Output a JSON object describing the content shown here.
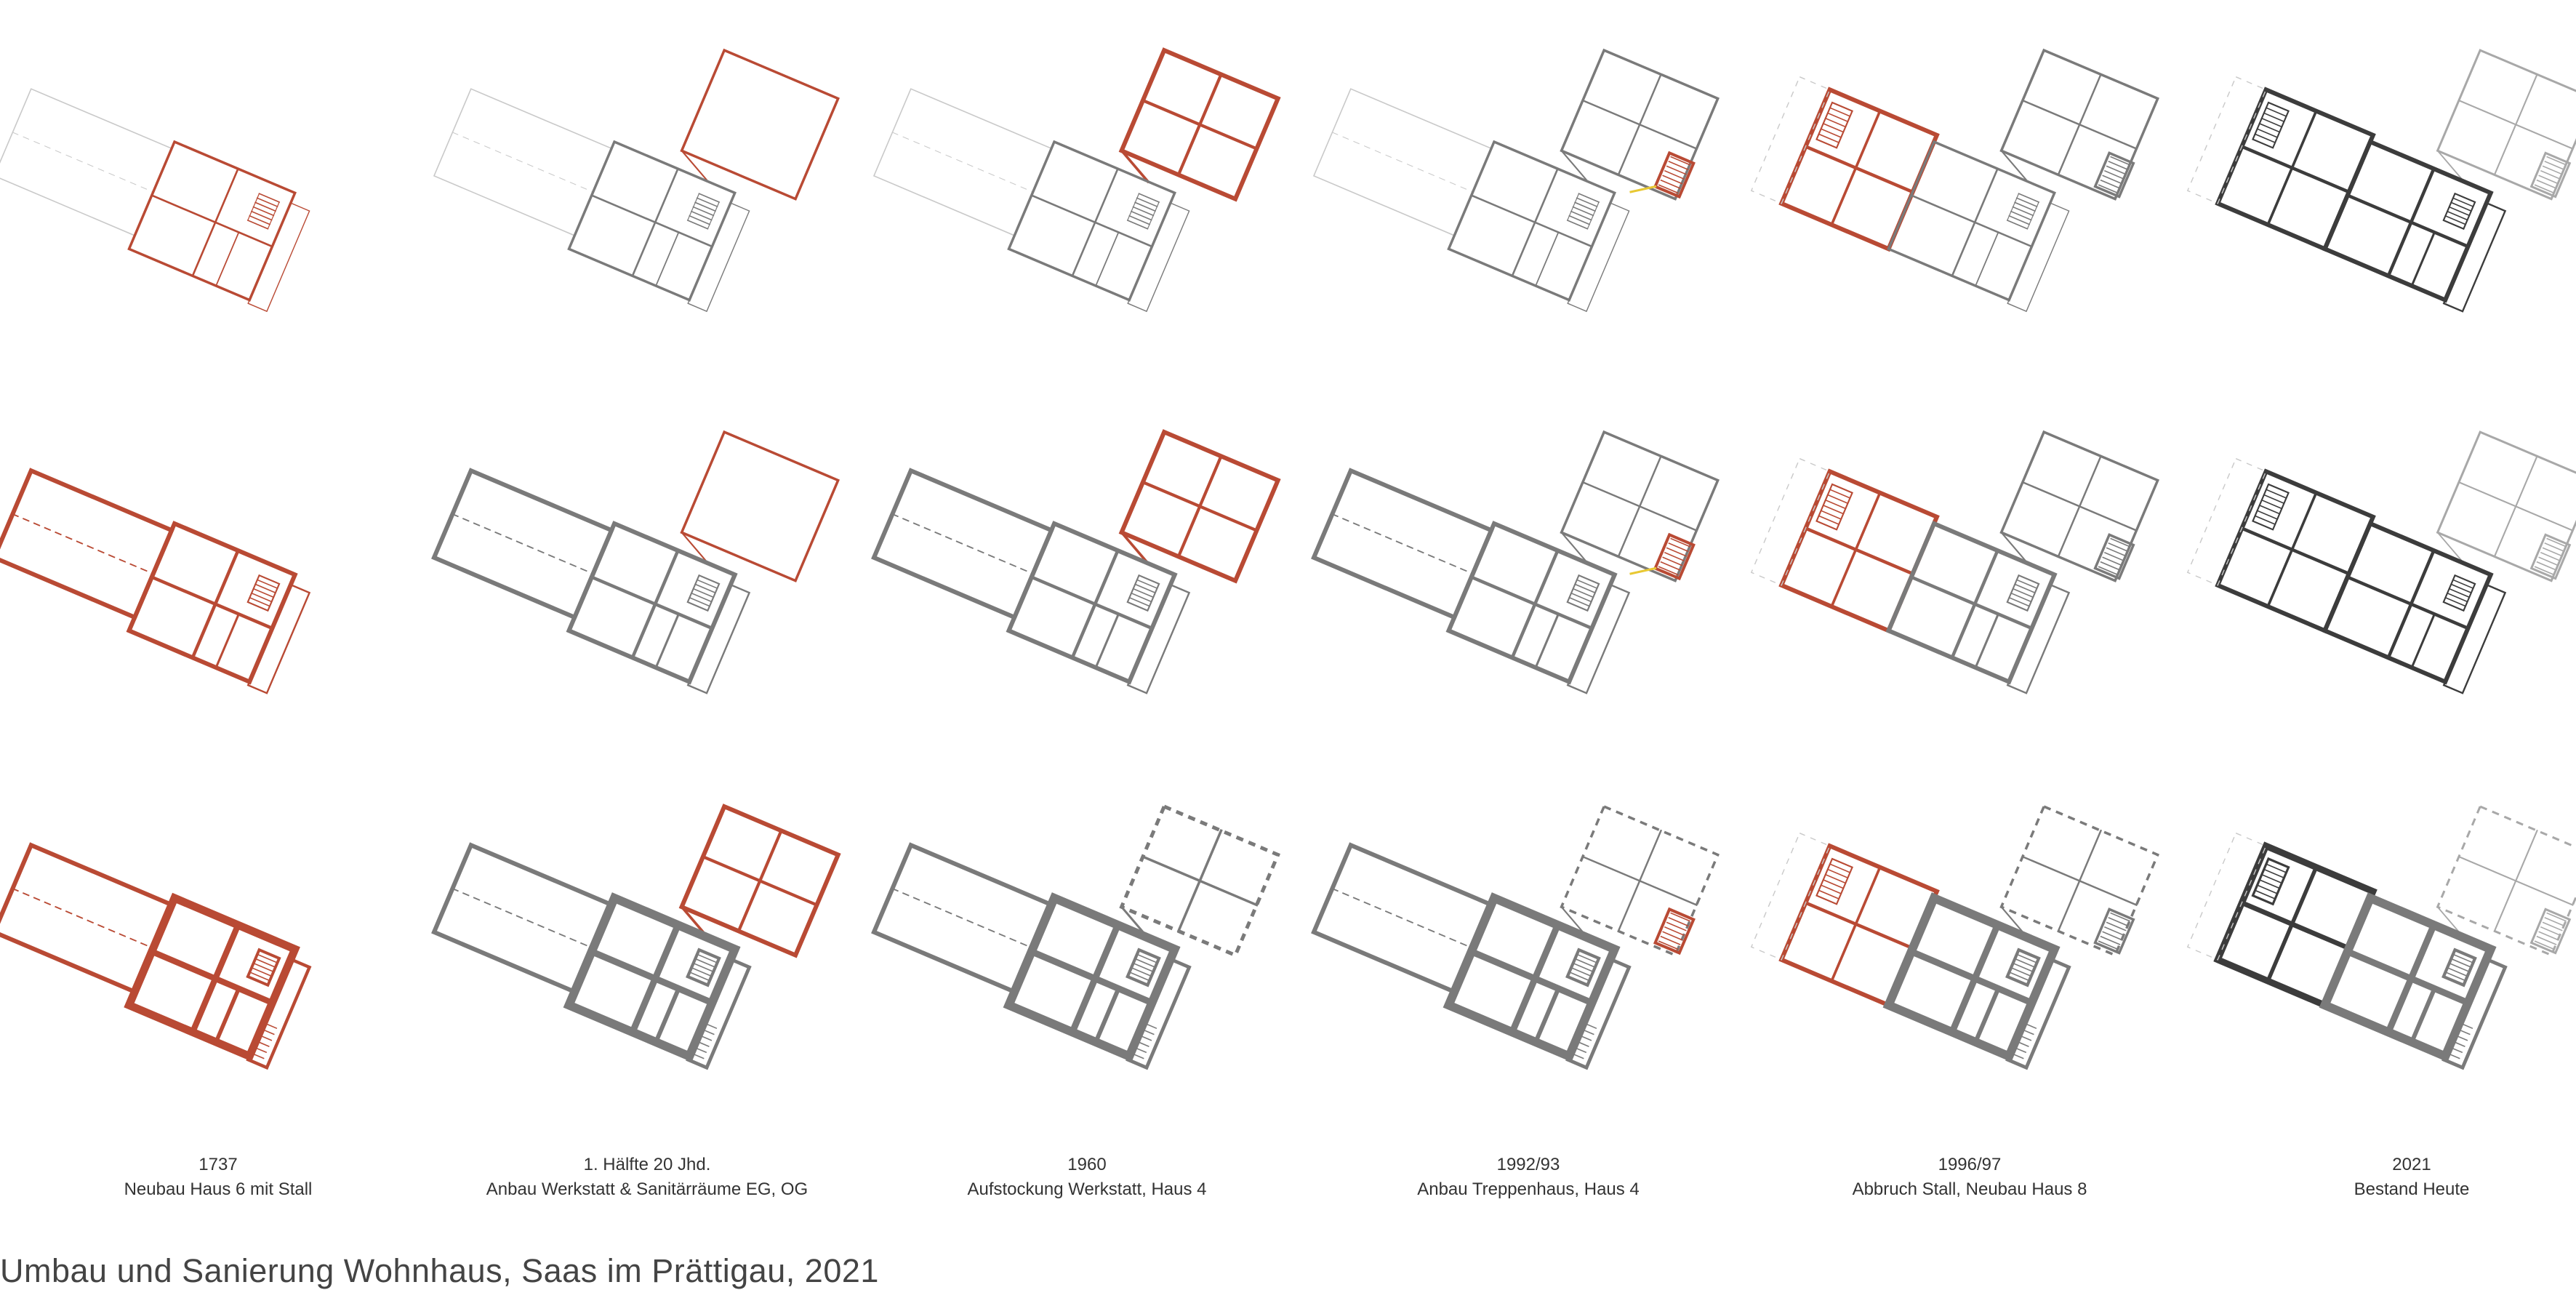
{
  "title": "Umbau und Sanierung Wohnhaus, Saas im Prättigau, 2021",
  "colors": {
    "new": "#b94a34",
    "existing": "#7a7a7a",
    "existing_dark": "#3c3c3c",
    "faint": "#c9c9c9",
    "highlight": "#e8c832"
  },
  "stages": [
    {
      "year": "1737",
      "label": "Neubau Haus 6 mit Stall"
    },
    {
      "year": "1. Hälfte 20 Jhd.",
      "label": "Anbau Werkstatt & Sanitärräume EG, OG"
    },
    {
      "year": "1960",
      "label": "Aufstockung Werkstatt, Haus 4"
    },
    {
      "year": "1992/93",
      "label": "Anbau Treppenhaus, Haus 4"
    },
    {
      "year": "1996/97",
      "label": "Abbruch Stall, Neubau Haus 8"
    },
    {
      "year": "2021",
      "label": "Bestand Heute"
    }
  ]
}
